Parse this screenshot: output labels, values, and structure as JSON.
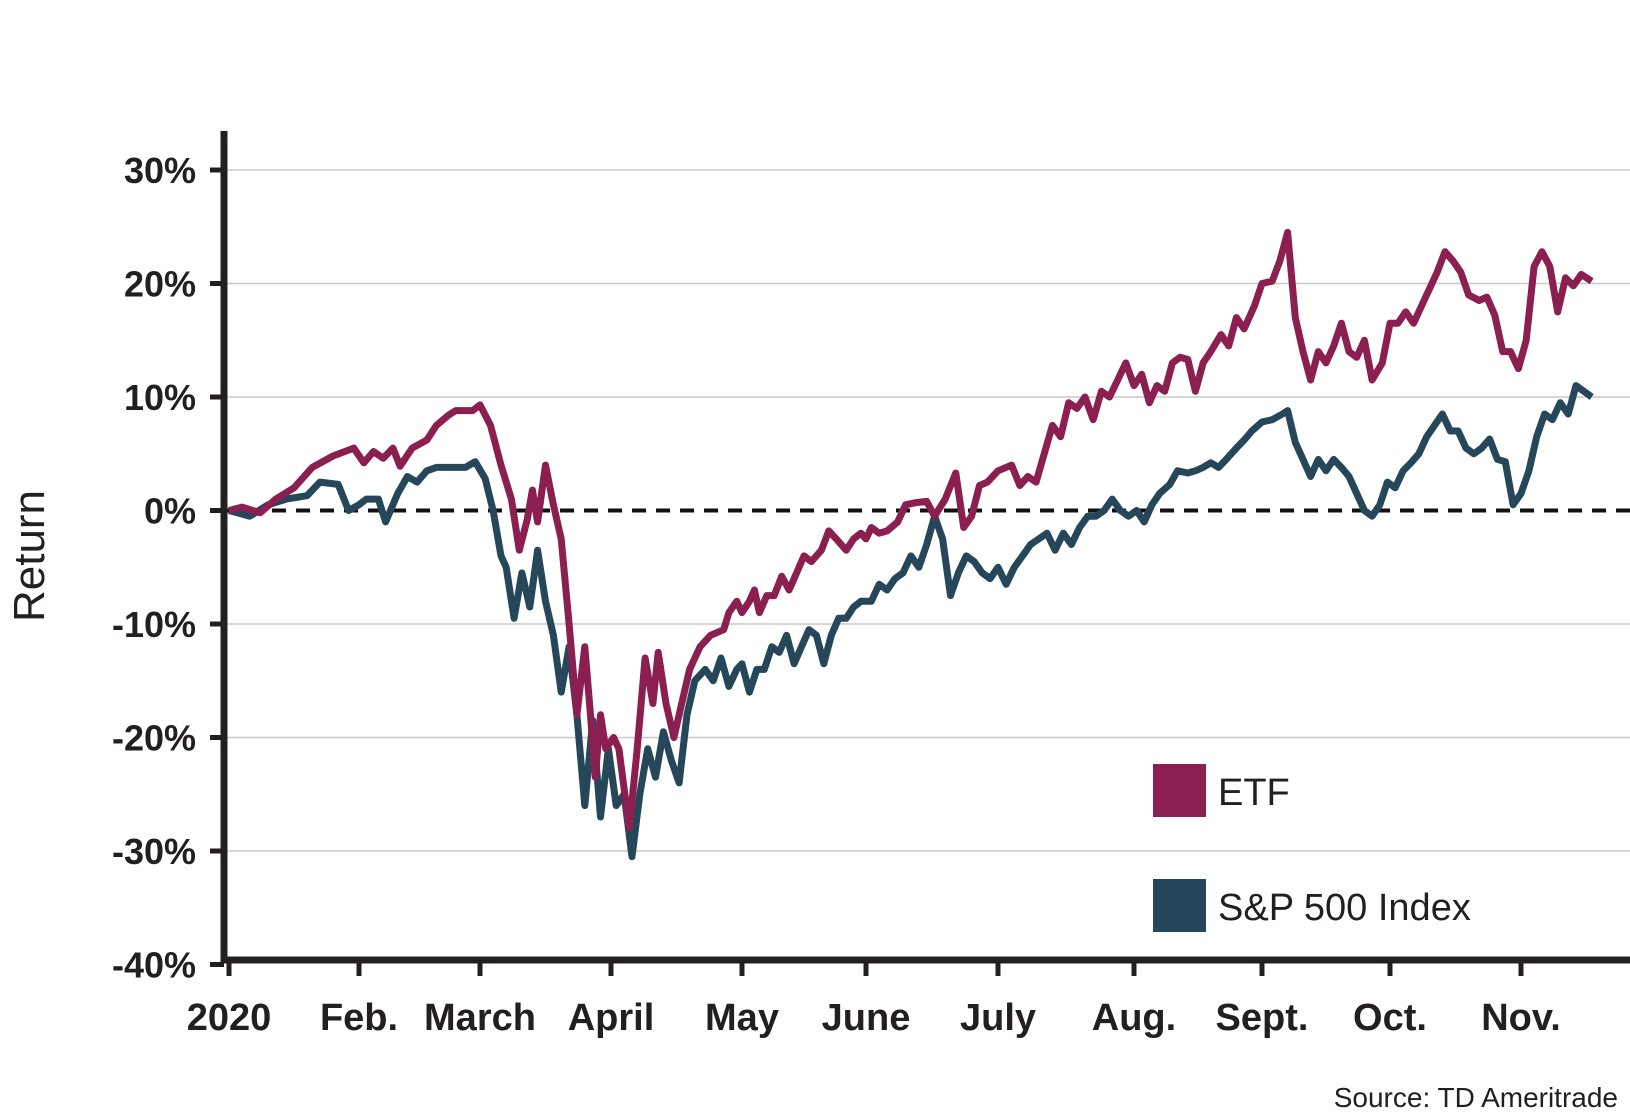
{
  "colors": {
    "etf": "#8b1f4f",
    "sp500": "#26475a",
    "axis": "#231f20",
    "grid": "#c8c8c8"
  },
  "source_note": "Source: TD Ameritrade",
  "chart_data": {
    "type": "line",
    "xlabel": "",
    "ylabel": "Return",
    "ylim": [
      -40,
      33
    ],
    "yticks": [
      30,
      20,
      10,
      0,
      -10,
      -20,
      -30,
      -40
    ],
    "ytick_labels": [
      "30%",
      "20%",
      "10%",
      "0%",
      "-10%",
      "-20%",
      "-30%",
      "-40%"
    ],
    "x_months": [
      "2020",
      "Feb.",
      "March",
      "April",
      "May",
      "June",
      "July",
      "Aug.",
      "Sept.",
      "Oct.",
      "Nov."
    ],
    "grid": "horizontal",
    "zero_line": "dashed",
    "legend_position": "bottom-right",
    "series": [
      {
        "name": "ETF",
        "points": [
          [
            0,
            0
          ],
          [
            0.05,
            0.3
          ],
          [
            0.12,
            -0.2
          ],
          [
            0.18,
            1
          ],
          [
            0.25,
            2
          ],
          [
            0.32,
            3.8
          ],
          [
            0.4,
            4.8
          ],
          [
            0.48,
            5.5
          ],
          [
            0.52,
            4.2
          ],
          [
            0.56,
            5.2
          ],
          [
            0.6,
            4.6
          ],
          [
            0.64,
            5.5
          ],
          [
            0.67,
            3.9
          ],
          [
            0.72,
            5.5
          ],
          [
            0.78,
            6.2
          ],
          [
            0.82,
            7.5
          ],
          [
            0.87,
            8.4
          ],
          [
            0.9,
            8.8
          ],
          [
            0.94,
            8.8
          ],
          [
            0.97,
            8.8
          ],
          [
            1.0,
            9.3
          ],
          [
            1.04,
            7.5
          ],
          [
            1.08,
            4
          ],
          [
            1.12,
            1
          ],
          [
            1.15,
            -3.5
          ],
          [
            1.18,
            -0.8
          ],
          [
            1.2,
            1.8
          ],
          [
            1.22,
            -1
          ],
          [
            1.25,
            4
          ],
          [
            1.28,
            0.5
          ],
          [
            1.31,
            -2.5
          ],
          [
            1.34,
            -10
          ],
          [
            1.37,
            -18
          ],
          [
            1.4,
            -12
          ],
          [
            1.42,
            -17.5
          ],
          [
            1.44,
            -23.5
          ],
          [
            1.46,
            -18
          ],
          [
            1.48,
            -21
          ],
          [
            1.51,
            -20
          ],
          [
            1.53,
            -21
          ],
          [
            1.57,
            -28
          ],
          [
            1.6,
            -21
          ],
          [
            1.63,
            -13
          ],
          [
            1.66,
            -17
          ],
          [
            1.68,
            -12.5
          ],
          [
            1.71,
            -17
          ],
          [
            1.74,
            -20
          ],
          [
            1.77,
            -17
          ],
          [
            1.8,
            -14
          ],
          [
            1.84,
            -12
          ],
          [
            1.88,
            -11
          ],
          [
            1.93,
            -10.5
          ],
          [
            1.95,
            -9
          ],
          [
            1.98,
            -8
          ],
          [
            2.0,
            -9
          ],
          [
            2.03,
            -8
          ],
          [
            2.05,
            -7
          ],
          [
            2.07,
            -9
          ],
          [
            2.1,
            -7.5
          ],
          [
            2.13,
            -7.5
          ],
          [
            2.16,
            -5.8
          ],
          [
            2.19,
            -7
          ],
          [
            2.22,
            -5.5
          ],
          [
            2.25,
            -4
          ],
          [
            2.28,
            -4.5
          ],
          [
            2.32,
            -3.5
          ],
          [
            2.35,
            -1.8
          ],
          [
            2.38,
            -2.5
          ],
          [
            2.42,
            -3.5
          ],
          [
            2.45,
            -2.5
          ],
          [
            2.48,
            -2
          ],
          [
            2.5,
            -2.5
          ],
          [
            2.52,
            -1.5
          ],
          [
            2.55,
            -2
          ],
          [
            2.58,
            -1.8
          ],
          [
            2.62,
            -1
          ],
          [
            2.65,
            0.5
          ],
          [
            2.69,
            0.7
          ],
          [
            2.73,
            0.8
          ],
          [
            2.76,
            -0.5
          ],
          [
            2.8,
            1
          ],
          [
            2.84,
            3.3
          ],
          [
            2.87,
            -1.5
          ],
          [
            2.9,
            -0.5
          ],
          [
            2.93,
            2.2
          ],
          [
            2.96,
            2.5
          ],
          [
            3.0,
            3.5
          ],
          [
            3.05,
            4
          ],
          [
            3.08,
            2.2
          ],
          [
            3.11,
            3
          ],
          [
            3.14,
            2.5
          ],
          [
            3.17,
            5
          ],
          [
            3.2,
            7.5
          ],
          [
            3.23,
            6.5
          ],
          [
            3.26,
            9.5
          ],
          [
            3.29,
            9
          ],
          [
            3.32,
            10
          ],
          [
            3.35,
            8
          ],
          [
            3.38,
            10.5
          ],
          [
            3.41,
            10
          ],
          [
            3.44,
            11.5
          ],
          [
            3.47,
            13
          ],
          [
            3.5,
            11
          ],
          [
            3.53,
            12
          ],
          [
            3.56,
            9.5
          ],
          [
            3.59,
            11
          ],
          [
            3.62,
            10.5
          ],
          [
            3.65,
            13
          ],
          [
            3.68,
            13.5
          ],
          [
            3.71,
            13.3
          ],
          [
            3.74,
            10.5
          ],
          [
            3.77,
            13
          ],
          [
            3.8,
            14
          ],
          [
            3.84,
            15.5
          ],
          [
            3.87,
            14.5
          ],
          [
            3.9,
            17
          ],
          [
            3.93,
            16
          ],
          [
            3.97,
            18
          ],
          [
            4.0,
            20
          ],
          [
            4.04,
            20.2
          ],
          [
            4.07,
            22
          ],
          [
            4.1,
            24.5
          ],
          [
            4.13,
            17
          ],
          [
            4.16,
            14
          ],
          [
            4.19,
            11.5
          ],
          [
            4.22,
            14
          ],
          [
            4.25,
            13
          ],
          [
            4.28,
            14.5
          ],
          [
            4.31,
            16.5
          ],
          [
            4.34,
            14
          ],
          [
            4.37,
            13.5
          ],
          [
            4.4,
            15
          ],
          [
            4.43,
            11.5
          ],
          [
            4.47,
            13
          ],
          [
            4.5,
            16.5
          ],
          [
            4.53,
            16.5
          ],
          [
            4.56,
            17.5
          ],
          [
            4.59,
            16.5
          ],
          [
            4.62,
            18
          ],
          [
            4.65,
            19.5
          ],
          [
            4.68,
            21
          ],
          [
            4.71,
            22.8
          ],
          [
            4.74,
            22
          ],
          [
            4.77,
            21
          ],
          [
            4.8,
            19
          ],
          [
            4.84,
            18.5
          ],
          [
            4.87,
            18.8
          ],
          [
            4.9,
            17.2
          ],
          [
            4.93,
            14
          ],
          [
            4.96,
            14
          ],
          [
            4.99,
            12.5
          ],
          [
            5.02,
            15
          ],
          [
            5.05,
            21.5
          ],
          [
            5.08,
            22.8
          ],
          [
            5.11,
            21.5
          ],
          [
            5.14,
            17.5
          ],
          [
            5.17,
            20.5
          ],
          [
            5.2,
            19.8
          ],
          [
            5.23,
            20.8
          ],
          [
            5.27,
            20.2
          ]
        ]
      },
      {
        "name": "S&P 500 Index",
        "points": [
          [
            0,
            0
          ],
          [
            0.08,
            -0.5
          ],
          [
            0.15,
            0.5
          ],
          [
            0.22,
            1
          ],
          [
            0.3,
            1.3
          ],
          [
            0.35,
            2.5
          ],
          [
            0.42,
            2.3
          ],
          [
            0.46,
            0
          ],
          [
            0.5,
            0.5
          ],
          [
            0.53,
            1
          ],
          [
            0.58,
            1
          ],
          [
            0.61,
            -1
          ],
          [
            0.66,
            1.5
          ],
          [
            0.7,
            3
          ],
          [
            0.74,
            2.5
          ],
          [
            0.78,
            3.5
          ],
          [
            0.82,
            3.8
          ],
          [
            0.86,
            3.8
          ],
          [
            0.9,
            3.8
          ],
          [
            0.94,
            3.8
          ],
          [
            0.98,
            4.3
          ],
          [
            1.02,
            2.8
          ],
          [
            1.05,
            0
          ],
          [
            1.08,
            -4
          ],
          [
            1.1,
            -5
          ],
          [
            1.13,
            -9.5
          ],
          [
            1.16,
            -5.5
          ],
          [
            1.19,
            -8.5
          ],
          [
            1.22,
            -3.5
          ],
          [
            1.25,
            -8
          ],
          [
            1.28,
            -11
          ],
          [
            1.31,
            -16
          ],
          [
            1.34,
            -12
          ],
          [
            1.37,
            -18
          ],
          [
            1.4,
            -26
          ],
          [
            1.43,
            -18.5
          ],
          [
            1.46,
            -27
          ],
          [
            1.49,
            -21
          ],
          [
            1.52,
            -26
          ],
          [
            1.55,
            -25
          ],
          [
            1.58,
            -30.5
          ],
          [
            1.61,
            -25
          ],
          [
            1.64,
            -21
          ],
          [
            1.67,
            -23.5
          ],
          [
            1.7,
            -19.5
          ],
          [
            1.73,
            -22
          ],
          [
            1.76,
            -24
          ],
          [
            1.79,
            -18
          ],
          [
            1.82,
            -15
          ],
          [
            1.86,
            -14
          ],
          [
            1.89,
            -15
          ],
          [
            1.92,
            -13
          ],
          [
            1.95,
            -15.5
          ],
          [
            1.98,
            -14
          ],
          [
            2.0,
            -13.5
          ],
          [
            2.03,
            -16
          ],
          [
            2.06,
            -14
          ],
          [
            2.09,
            -14
          ],
          [
            2.12,
            -12
          ],
          [
            2.15,
            -12.5
          ],
          [
            2.18,
            -11
          ],
          [
            2.21,
            -13.5
          ],
          [
            2.24,
            -12
          ],
          [
            2.27,
            -10.5
          ],
          [
            2.3,
            -11
          ],
          [
            2.33,
            -13.5
          ],
          [
            2.36,
            -11
          ],
          [
            2.39,
            -9.5
          ],
          [
            2.42,
            -9.5
          ],
          [
            2.45,
            -8.5
          ],
          [
            2.48,
            -8
          ],
          [
            2.52,
            -8
          ],
          [
            2.55,
            -6.5
          ],
          [
            2.58,
            -7
          ],
          [
            2.61,
            -6
          ],
          [
            2.64,
            -5.5
          ],
          [
            2.67,
            -4
          ],
          [
            2.7,
            -5
          ],
          [
            2.73,
            -3
          ],
          [
            2.76,
            -0.5
          ],
          [
            2.79,
            -2.5
          ],
          [
            2.82,
            -7.5
          ],
          [
            2.85,
            -5.5
          ],
          [
            2.88,
            -4
          ],
          [
            2.91,
            -4.5
          ],
          [
            2.94,
            -5.5
          ],
          [
            2.97,
            -6
          ],
          [
            3.0,
            -5
          ],
          [
            3.03,
            -6.5
          ],
          [
            3.06,
            -5
          ],
          [
            3.09,
            -4
          ],
          [
            3.12,
            -3
          ],
          [
            3.15,
            -2.5
          ],
          [
            3.18,
            -2
          ],
          [
            3.21,
            -3.5
          ],
          [
            3.24,
            -2
          ],
          [
            3.27,
            -3
          ],
          [
            3.3,
            -1.5
          ],
          [
            3.33,
            -0.5
          ],
          [
            3.36,
            -0.5
          ],
          [
            3.39,
            0
          ],
          [
            3.42,
            1
          ],
          [
            3.45,
            0
          ],
          [
            3.48,
            -0.5
          ],
          [
            3.51,
            0
          ],
          [
            3.54,
            -1
          ],
          [
            3.57,
            0.5
          ],
          [
            3.6,
            1.5
          ],
          [
            3.64,
            2.3
          ],
          [
            3.67,
            3.5
          ],
          [
            3.71,
            3.3
          ],
          [
            3.74,
            3.5
          ],
          [
            3.77,
            3.8
          ],
          [
            3.8,
            4.2
          ],
          [
            3.83,
            3.8
          ],
          [
            3.86,
            4.5
          ],
          [
            3.9,
            5.5
          ],
          [
            3.93,
            6.2
          ],
          [
            3.96,
            7
          ],
          [
            4.0,
            7.8
          ],
          [
            4.04,
            8
          ],
          [
            4.08,
            8.5
          ],
          [
            4.1,
            8.8
          ],
          [
            4.13,
            6
          ],
          [
            4.16,
            4.5
          ],
          [
            4.19,
            3
          ],
          [
            4.22,
            4.5
          ],
          [
            4.25,
            3.5
          ],
          [
            4.28,
            4.5
          ],
          [
            4.31,
            3.8
          ],
          [
            4.34,
            3
          ],
          [
            4.37,
            1.5
          ],
          [
            4.4,
            0
          ],
          [
            4.43,
            -0.5
          ],
          [
            4.46,
            0.5
          ],
          [
            4.49,
            2.5
          ],
          [
            4.52,
            2
          ],
          [
            4.55,
            3.5
          ],
          [
            4.58,
            4.2
          ],
          [
            4.61,
            5
          ],
          [
            4.64,
            6.5
          ],
          [
            4.67,
            7.5
          ],
          [
            4.7,
            8.5
          ],
          [
            4.73,
            7
          ],
          [
            4.76,
            7
          ],
          [
            4.79,
            5.5
          ],
          [
            4.82,
            5
          ],
          [
            4.85,
            5.5
          ],
          [
            4.88,
            6.3
          ],
          [
            4.91,
            4.5
          ],
          [
            4.94,
            4.3
          ],
          [
            4.97,
            0.5
          ],
          [
            5.0,
            1.5
          ],
          [
            5.03,
            3.5
          ],
          [
            5.06,
            6.5
          ],
          [
            5.09,
            8.5
          ],
          [
            5.12,
            8
          ],
          [
            5.15,
            9.5
          ],
          [
            5.18,
            8.5
          ],
          [
            5.21,
            11
          ],
          [
            5.24,
            10.5
          ],
          [
            5.27,
            10
          ]
        ]
      }
    ]
  }
}
